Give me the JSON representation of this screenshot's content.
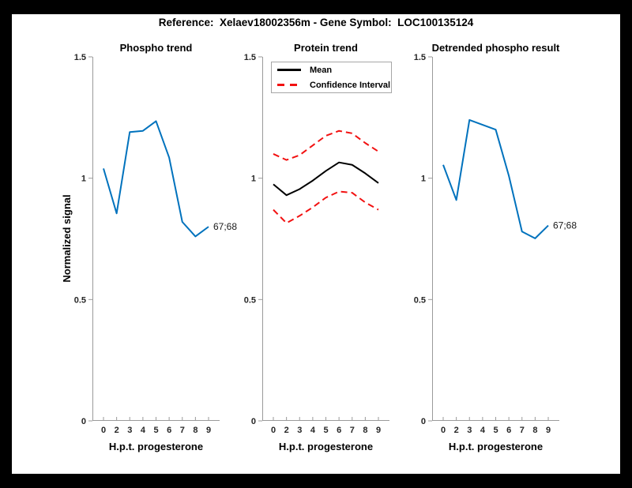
{
  "figure": {
    "title": "Reference:  Xelaev18002356m - Gene Symbol:  LOC100135124"
  },
  "colors": {
    "blue": "#0072BD",
    "red": "#F21111",
    "black": "#000000",
    "axis_line": "#9a9a9a",
    "tick_text": "#262626"
  },
  "chart_data": [
    {
      "type": "line",
      "title": "Phospho trend",
      "xlabel": "H.p.t. progesterone",
      "ylabel": "Normalized signal",
      "x_tick_labels": [
        "0",
        "2",
        "3",
        "4",
        "5",
        "6",
        "7",
        "8",
        "9"
      ],
      "ylim": [
        0,
        1.5
      ],
      "yticks": [
        0,
        0.5,
        1,
        1.5
      ],
      "ytick_labels": [
        "0",
        "0.5",
        "1",
        "1.5"
      ],
      "grid": false,
      "series": [
        {
          "name": "phospho-trend-line",
          "color": "#0072BD",
          "dash": "solid",
          "values": [
            1.04,
            0.855,
            1.19,
            1.195,
            1.235,
            1.085,
            0.82,
            0.76,
            0.8
          ]
        }
      ],
      "end_label": "67;68"
    },
    {
      "type": "line",
      "title": "Protein trend",
      "xlabel": "H.p.t. progesterone",
      "x_tick_labels": [
        "0",
        "2",
        "3",
        "4",
        "5",
        "6",
        "7",
        "8",
        "9"
      ],
      "ylim": [
        0,
        1.5
      ],
      "yticks": [
        0,
        0.5,
        1,
        1.5
      ],
      "ytick_labels": [
        "0",
        "0.5",
        "1",
        "1.5"
      ],
      "grid": false,
      "legend": {
        "position": "top-left",
        "items": [
          {
            "label": "Mean",
            "color": "#000000",
            "dash": "solid"
          },
          {
            "label": "Confidence Interval",
            "color": "#F21111",
            "dash": "dashed"
          }
        ]
      },
      "series": [
        {
          "name": "mean-line",
          "color": "#000000",
          "dash": "solid",
          "values": [
            0.975,
            0.93,
            0.955,
            0.99,
            1.03,
            1.065,
            1.055,
            1.02,
            0.98
          ]
        },
        {
          "name": "confidence-interval-upper-line",
          "color": "#F21111",
          "dash": "dashed",
          "values": [
            1.1,
            1.075,
            1.095,
            1.135,
            1.175,
            1.195,
            1.185,
            1.145,
            1.11
          ]
        },
        {
          "name": "confidence-interval-lower-line",
          "color": "#F21111",
          "dash": "dashed",
          "values": [
            0.87,
            0.815,
            0.845,
            0.88,
            0.92,
            0.945,
            0.94,
            0.9,
            0.87
          ]
        }
      ]
    },
    {
      "type": "line",
      "title": "Detrended phospho result",
      "xlabel": "H.p.t. progesterone",
      "x_tick_labels": [
        "0",
        "2",
        "3",
        "4",
        "5",
        "6",
        "7",
        "8",
        "9"
      ],
      "ylim": [
        0,
        1.5
      ],
      "yticks": [
        0,
        0.5,
        1,
        1.5
      ],
      "ytick_labels": [
        "0",
        "0.5",
        "1",
        "1.5"
      ],
      "grid": false,
      "series": [
        {
          "name": "detrended-phospho-line",
          "color": "#0072BD",
          "dash": "solid",
          "values": [
            1.055,
            0.91,
            1.24,
            1.22,
            1.2,
            1.01,
            0.78,
            0.752,
            0.805
          ]
        }
      ],
      "end_label": "67;68"
    }
  ]
}
